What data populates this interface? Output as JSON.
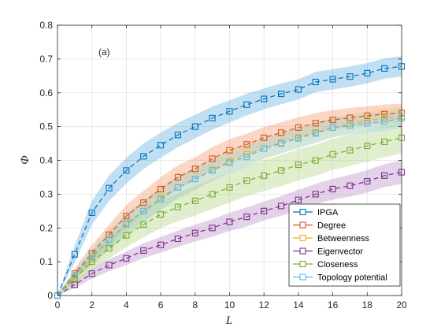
{
  "chart_data": {
    "type": "line",
    "panel_label": "(a)",
    "xlabel": "L",
    "ylabel": "Φ",
    "xlim": [
      0,
      20
    ],
    "ylim": [
      0,
      0.8
    ],
    "x_ticks": [
      0,
      2,
      4,
      6,
      8,
      10,
      12,
      14,
      16,
      18,
      20
    ],
    "y_ticks": [
      0,
      0.1,
      0.2,
      0.3,
      0.4,
      0.5,
      0.6,
      0.7,
      0.8
    ],
    "grid": true,
    "legend_position": "bottom-right",
    "x": [
      0,
      1,
      2,
      3,
      4,
      5,
      6,
      7,
      8,
      9,
      10,
      11,
      12,
      13,
      14,
      15,
      16,
      17,
      18,
      19,
      20
    ],
    "series": [
      {
        "name": "IPGA",
        "color": "#0072BD",
        "band_color": "#4DA3DB",
        "values": [
          0.0,
          0.122,
          0.245,
          0.318,
          0.37,
          0.412,
          0.445,
          0.475,
          0.5,
          0.525,
          0.545,
          0.565,
          0.582,
          0.597,
          0.61,
          0.632,
          0.64,
          0.648,
          0.658,
          0.672,
          0.678
        ],
        "band": [
          0.0,
          0.025,
          0.035,
          0.038,
          0.038,
          0.038,
          0.037,
          0.036,
          0.035,
          0.034,
          0.033,
          0.032,
          0.031,
          0.031,
          0.03,
          0.03,
          0.03,
          0.03,
          0.03,
          0.03,
          0.03
        ]
      },
      {
        "name": "Degree",
        "color": "#D95319",
        "band_color": "#F08A5D",
        "values": [
          0.0,
          0.065,
          0.125,
          0.18,
          0.235,
          0.275,
          0.315,
          0.35,
          0.375,
          0.405,
          0.43,
          0.447,
          0.467,
          0.482,
          0.497,
          0.51,
          0.52,
          0.526,
          0.532,
          0.537,
          0.54
        ],
        "band": [
          0.0,
          0.015,
          0.025,
          0.03,
          0.033,
          0.035,
          0.035,
          0.035,
          0.034,
          0.034,
          0.033,
          0.032,
          0.032,
          0.031,
          0.03,
          0.03,
          0.029,
          0.029,
          0.028,
          0.028,
          0.028
        ]
      },
      {
        "name": "Betweenness",
        "color": "#EDB120",
        "band_color": "#F3CC6A",
        "values": [
          0.0,
          0.055,
          0.11,
          0.165,
          0.21,
          0.25,
          0.29,
          0.32,
          0.345,
          0.372,
          0.397,
          0.418,
          0.435,
          0.452,
          0.468,
          0.483,
          0.497,
          0.508,
          0.518,
          0.525,
          0.53
        ],
        "band": [
          0.0,
          0.015,
          0.024,
          0.03,
          0.033,
          0.034,
          0.034,
          0.034,
          0.033,
          0.033,
          0.032,
          0.032,
          0.031,
          0.031,
          0.03,
          0.03,
          0.029,
          0.029,
          0.028,
          0.028,
          0.028
        ]
      },
      {
        "name": "Eigenvector",
        "color": "#7E2F8E",
        "band_color": "#B07DBE",
        "values": [
          0.0,
          0.032,
          0.065,
          0.09,
          0.11,
          0.133,
          0.15,
          0.168,
          0.185,
          0.2,
          0.218,
          0.233,
          0.25,
          0.265,
          0.283,
          0.3,
          0.315,
          0.325,
          0.338,
          0.355,
          0.365
        ],
        "band": [
          0.0,
          0.01,
          0.015,
          0.018,
          0.02,
          0.022,
          0.023,
          0.024,
          0.025,
          0.026,
          0.027,
          0.028,
          0.028,
          0.029,
          0.03,
          0.03,
          0.031,
          0.032,
          0.033,
          0.034,
          0.035
        ]
      },
      {
        "name": "Closeness",
        "color": "#77AC30",
        "band_color": "#A6CD70",
        "values": [
          0.0,
          0.05,
          0.1,
          0.14,
          0.178,
          0.21,
          0.24,
          0.262,
          0.28,
          0.3,
          0.32,
          0.34,
          0.355,
          0.37,
          0.387,
          0.4,
          0.418,
          0.43,
          0.443,
          0.455,
          0.467
        ],
        "band": [
          0.0,
          0.015,
          0.025,
          0.03,
          0.035,
          0.038,
          0.04,
          0.042,
          0.043,
          0.044,
          0.045,
          0.045,
          0.046,
          0.046,
          0.046,
          0.046,
          0.046,
          0.046,
          0.046,
          0.046,
          0.046
        ]
      },
      {
        "name": "Topology potential",
        "color": "#4DBEEE",
        "band_color": "#8DD6F5",
        "values": [
          0.0,
          0.06,
          0.115,
          0.165,
          0.213,
          0.25,
          0.285,
          0.32,
          0.345,
          0.37,
          0.393,
          0.41,
          0.435,
          0.45,
          0.465,
          0.48,
          0.497,
          0.503,
          0.51,
          0.515,
          0.525
        ],
        "band": [
          0.0,
          0.014,
          0.022,
          0.027,
          0.03,
          0.032,
          0.032,
          0.032,
          0.032,
          0.031,
          0.031,
          0.03,
          0.03,
          0.03,
          0.029,
          0.029,
          0.029,
          0.028,
          0.028,
          0.028,
          0.028
        ]
      }
    ]
  }
}
